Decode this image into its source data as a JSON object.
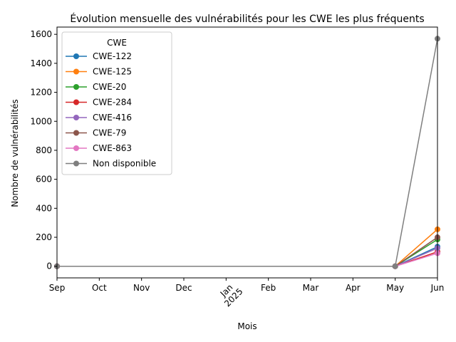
{
  "chart_data": {
    "type": "line",
    "title": "Évolution mensuelle des vulnérabilités pour les CWE les plus fréquents",
    "xlabel": "Mois",
    "ylabel": "Nombre de vulnérabilités",
    "x": [
      "2024-09",
      "2025-05",
      "2025-06"
    ],
    "x_ticks": [
      "Sep",
      "Oct",
      "Nov",
      "Dec",
      "Jan",
      "Feb",
      "Mar",
      "Apr",
      "May",
      "Jun"
    ],
    "x_year_label": "2025",
    "xlim": [
      "2024-09",
      "2025-06"
    ],
    "y_ticks": [
      0,
      200,
      400,
      600,
      800,
      1000,
      1200,
      1400,
      1600
    ],
    "ylim": [
      -80,
      1650
    ],
    "legend": {
      "title": "CWE",
      "placement": "top-left"
    },
    "series": [
      {
        "name": "CWE-122",
        "color": "#1f77b4",
        "values": [
          0,
          0,
          135
        ]
      },
      {
        "name": "CWE-125",
        "color": "#ff7f0e",
        "values": [
          0,
          0,
          255
        ]
      },
      {
        "name": "CWE-20",
        "color": "#2ca02c",
        "values": [
          0,
          0,
          185
        ]
      },
      {
        "name": "CWE-284",
        "color": "#d62728",
        "values": [
          0,
          0,
          100
        ]
      },
      {
        "name": "CWE-416",
        "color": "#9467bd",
        "values": [
          0,
          0,
          125
        ]
      },
      {
        "name": "CWE-79",
        "color": "#8c564b",
        "values": [
          0,
          0,
          200
        ]
      },
      {
        "name": "CWE-863",
        "color": "#e377c2",
        "values": [
          0,
          0,
          90
        ]
      },
      {
        "name": "Non disponible",
        "color": "#7f7f7f",
        "values": [
          0,
          0,
          1570
        ]
      }
    ]
  }
}
